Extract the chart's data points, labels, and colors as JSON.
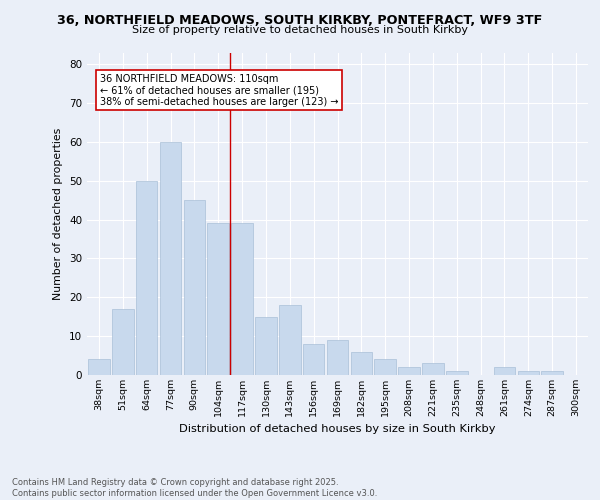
{
  "title_line1": "36, NORTHFIELD MEADOWS, SOUTH KIRKBY, PONTEFRACT, WF9 3TF",
  "title_line2": "Size of property relative to detached houses in South Kirkby",
  "xlabel": "Distribution of detached houses by size in South Kirkby",
  "ylabel": "Number of detached properties",
  "categories": [
    "38sqm",
    "51sqm",
    "64sqm",
    "77sqm",
    "90sqm",
    "104sqm",
    "117sqm",
    "130sqm",
    "143sqm",
    "156sqm",
    "169sqm",
    "182sqm",
    "195sqm",
    "208sqm",
    "221sqm",
    "235sqm",
    "248sqm",
    "261sqm",
    "274sqm",
    "287sqm",
    "300sqm"
  ],
  "values": [
    4,
    17,
    50,
    60,
    45,
    39,
    39,
    15,
    18,
    8,
    9,
    6,
    4,
    2,
    3,
    1,
    0,
    2,
    1,
    1,
    0
  ],
  "bar_color": "#c8d9ed",
  "bar_edge_color": "#aac0d8",
  "vline_x": 5.5,
  "vline_color": "#cc0000",
  "annotation_text": "36 NORTHFIELD MEADOWS: 110sqm\n← 61% of detached houses are smaller (195)\n38% of semi-detached houses are larger (123) →",
  "annotation_box_facecolor": "#ffffff",
  "annotation_box_edgecolor": "#cc0000",
  "ylim": [
    0,
    83
  ],
  "yticks": [
    0,
    10,
    20,
    30,
    40,
    50,
    60,
    70,
    80
  ],
  "background_color": "#eaeff8",
  "fig_facecolor": "#eaeff8",
  "footer": "Contains HM Land Registry data © Crown copyright and database right 2025.\nContains public sector information licensed under the Open Government Licence v3.0."
}
